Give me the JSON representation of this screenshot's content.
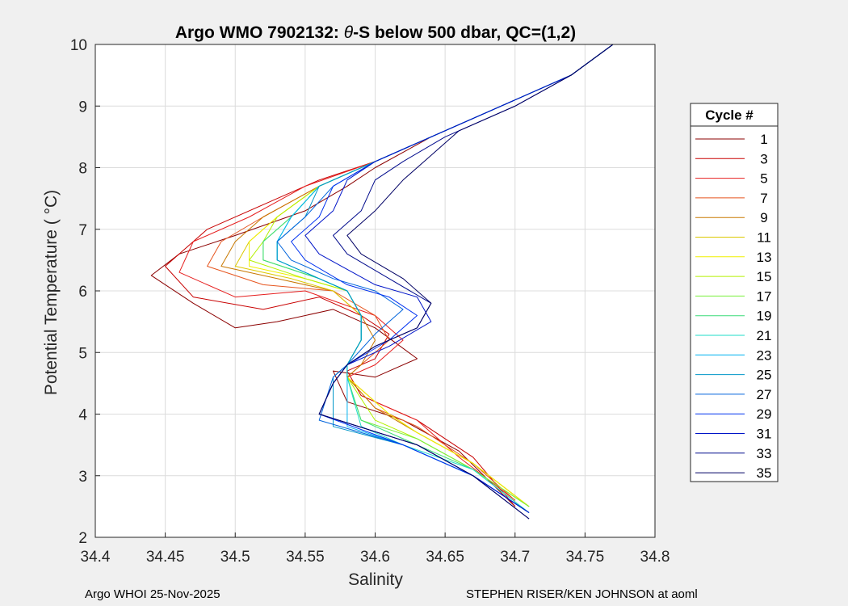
{
  "chart_data": {
    "type": "line",
    "title_prefix": "Argo WMO 7902132: ",
    "title_symbol": "θ",
    "title_suffix": "-S below 500 dbar,  QC=(1,2)",
    "xlabel": "Salinity",
    "ylabel": "Potential Temperature ( °C)",
    "xlim": [
      34.4,
      34.8
    ],
    "ylim": [
      2,
      10
    ],
    "xticks": [
      "34.4",
      "34.45",
      "34.5",
      "34.55",
      "34.6",
      "34.65",
      "34.7",
      "34.75",
      "34.8"
    ],
    "yticks": [
      "2",
      "3",
      "4",
      "5",
      "6",
      "7",
      "8",
      "9",
      "10"
    ],
    "grid": true,
    "legend": {
      "title": "Cycle #",
      "position": "right-outside",
      "entries": [
        {
          "label": "1",
          "color": "#8b0000"
        },
        {
          "label": "3",
          "color": "#c80000"
        },
        {
          "label": "5",
          "color": "#e61e1e"
        },
        {
          "label": "7",
          "color": "#e6551e"
        },
        {
          "label": "9",
          "color": "#c87800"
        },
        {
          "label": "11",
          "color": "#dcc800"
        },
        {
          "label": "13",
          "color": "#f0f000"
        },
        {
          "label": "15",
          "color": "#b4f000"
        },
        {
          "label": "17",
          "color": "#78f03c"
        },
        {
          "label": "19",
          "color": "#3cdc78"
        },
        {
          "label": "21",
          "color": "#1edcc8"
        },
        {
          "label": "23",
          "color": "#00b4f0"
        },
        {
          "label": "25",
          "color": "#0096c8"
        },
        {
          "label": "27",
          "color": "#0064dc"
        },
        {
          "label": "29",
          "color": "#0032f0"
        },
        {
          "label": "31",
          "color": "#0014c8"
        },
        {
          "label": "33",
          "color": "#000a8c"
        },
        {
          "label": "35",
          "color": "#000064"
        }
      ]
    },
    "series": [
      {
        "name": "1",
        "salinity": [
          34.77,
          34.74,
          34.69,
          34.64,
          34.6,
          34.58,
          34.55,
          34.5,
          34.46,
          34.44,
          34.47,
          34.5,
          34.53,
          34.57,
          34.6,
          34.63,
          34.6,
          34.57,
          34.58,
          34.62,
          34.66,
          34.7
        ],
        "theta": [
          10.0,
          9.5,
          9.0,
          8.5,
          8.0,
          7.7,
          7.3,
          6.9,
          6.6,
          6.25,
          5.8,
          5.4,
          5.5,
          5.7,
          5.4,
          4.9,
          4.6,
          4.7,
          4.2,
          3.9,
          3.4,
          2.5
        ]
      },
      {
        "name": "3",
        "salinity": [
          34.77,
          34.74,
          34.69,
          34.64,
          34.6,
          34.56,
          34.52,
          34.48,
          34.45,
          34.47,
          34.52,
          34.56,
          34.59,
          34.61,
          34.6,
          34.58,
          34.59,
          34.63,
          34.67,
          34.7
        ],
        "theta": [
          10.0,
          9.5,
          9.0,
          8.5,
          8.1,
          7.8,
          7.4,
          7.0,
          6.4,
          5.9,
          5.7,
          5.9,
          5.6,
          5.3,
          4.9,
          4.7,
          4.3,
          3.9,
          3.3,
          2.5
        ]
      },
      {
        "name": "5",
        "salinity": [
          34.77,
          34.74,
          34.69,
          34.64,
          34.6,
          34.55,
          34.51,
          34.47,
          34.46,
          34.5,
          34.55,
          34.6,
          34.62,
          34.6,
          34.58,
          34.6,
          34.63,
          34.66,
          34.7
        ],
        "theta": [
          10.0,
          9.5,
          9.0,
          8.5,
          8.1,
          7.7,
          7.2,
          6.8,
          6.3,
          5.9,
          6.0,
          5.6,
          5.2,
          4.8,
          4.6,
          4.2,
          3.9,
          3.3,
          2.6
        ]
      },
      {
        "name": "7",
        "salinity": [
          34.77,
          34.74,
          34.69,
          34.64,
          34.6,
          34.56,
          34.52,
          34.49,
          34.48,
          34.52,
          34.57,
          34.6,
          34.61,
          34.59,
          34.58,
          34.6,
          34.63,
          34.67,
          34.7
        ],
        "theta": [
          10.0,
          9.5,
          9.0,
          8.5,
          8.1,
          7.7,
          7.2,
          6.8,
          6.4,
          6.1,
          6.0,
          5.6,
          5.2,
          4.8,
          4.6,
          4.1,
          3.8,
          3.2,
          2.6
        ]
      },
      {
        "name": "9",
        "salinity": [
          34.77,
          34.74,
          34.69,
          34.64,
          34.6,
          34.56,
          34.52,
          34.5,
          34.49,
          34.53,
          34.57,
          34.59,
          34.6,
          34.59,
          34.58,
          34.6,
          34.63,
          34.67,
          34.71
        ],
        "theta": [
          10.0,
          9.5,
          9.0,
          8.5,
          8.1,
          7.7,
          7.2,
          6.8,
          6.4,
          6.2,
          6.0,
          5.6,
          5.2,
          4.8,
          4.6,
          4.1,
          3.7,
          3.2,
          2.5
        ]
      },
      {
        "name": "11",
        "salinity": [
          34.77,
          34.74,
          34.69,
          34.64,
          34.6,
          34.56,
          34.53,
          34.51,
          34.5,
          34.54,
          34.57,
          34.59,
          34.59,
          34.58,
          34.58,
          34.61,
          34.63,
          34.67,
          34.71
        ],
        "theta": [
          10.0,
          9.5,
          9.0,
          8.5,
          8.1,
          7.7,
          7.2,
          6.8,
          6.4,
          6.2,
          6.0,
          5.6,
          5.2,
          4.8,
          4.6,
          4.0,
          3.7,
          3.2,
          2.5
        ]
      },
      {
        "name": "13",
        "salinity": [
          34.77,
          34.74,
          34.69,
          34.64,
          34.6,
          34.56,
          34.53,
          34.51,
          34.51,
          34.55,
          34.58,
          34.59,
          34.59,
          34.58,
          34.58,
          34.61,
          34.63,
          34.67,
          34.71
        ],
        "theta": [
          10.0,
          9.5,
          9.0,
          8.5,
          8.1,
          7.7,
          7.2,
          6.8,
          6.4,
          6.2,
          6.0,
          5.6,
          5.2,
          4.8,
          4.6,
          4.0,
          3.7,
          3.2,
          2.5
        ]
      },
      {
        "name": "15",
        "salinity": [
          34.77,
          34.74,
          34.69,
          34.64,
          34.6,
          34.56,
          34.53,
          34.52,
          34.51,
          34.55,
          34.58,
          34.59,
          34.59,
          34.58,
          34.58,
          34.6,
          34.63,
          34.67,
          34.71
        ],
        "theta": [
          10.0,
          9.5,
          9.0,
          8.5,
          8.1,
          7.7,
          7.2,
          6.8,
          6.5,
          6.2,
          6.0,
          5.6,
          5.2,
          4.8,
          4.6,
          3.9,
          3.6,
          3.1,
          2.5
        ]
      },
      {
        "name": "17",
        "salinity": [
          34.77,
          34.74,
          34.69,
          34.64,
          34.6,
          34.56,
          34.54,
          34.52,
          34.52,
          34.56,
          34.58,
          34.59,
          34.59,
          34.58,
          34.58,
          34.59,
          34.63,
          34.67,
          34.71
        ],
        "theta": [
          10.0,
          9.5,
          9.0,
          8.5,
          8.1,
          7.7,
          7.2,
          6.8,
          6.5,
          6.2,
          6.0,
          5.6,
          5.2,
          4.8,
          4.6,
          3.9,
          3.6,
          3.1,
          2.5
        ]
      },
      {
        "name": "19",
        "salinity": [
          34.77,
          34.74,
          34.69,
          34.64,
          34.6,
          34.56,
          34.54,
          34.52,
          34.52,
          34.56,
          34.58,
          34.59,
          34.59,
          34.58,
          34.58,
          34.59,
          34.62,
          34.67,
          34.71
        ],
        "theta": [
          10.0,
          9.5,
          9.0,
          8.5,
          8.1,
          7.7,
          7.2,
          6.8,
          6.5,
          6.2,
          6.0,
          5.6,
          5.2,
          4.8,
          4.6,
          3.9,
          3.6,
          3.1,
          2.4
        ]
      },
      {
        "name": "21",
        "salinity": [
          34.77,
          34.74,
          34.69,
          34.64,
          34.6,
          34.56,
          34.54,
          34.53,
          34.53,
          34.56,
          34.58,
          34.59,
          34.59,
          34.58,
          34.58,
          34.59,
          34.62,
          34.67,
          34.71
        ],
        "theta": [
          10.0,
          9.5,
          9.0,
          8.5,
          8.1,
          7.7,
          7.2,
          6.8,
          6.5,
          6.2,
          6.0,
          5.6,
          5.2,
          4.8,
          4.6,
          3.8,
          3.5,
          3.1,
          2.4
        ]
      },
      {
        "name": "23",
        "salinity": [
          34.77,
          34.74,
          34.69,
          34.64,
          34.6,
          34.56,
          34.54,
          34.53,
          34.53,
          34.56,
          34.58,
          34.59,
          34.59,
          34.58,
          34.58,
          34.58,
          34.62,
          34.67,
          34.71
        ],
        "theta": [
          10.0,
          9.5,
          9.0,
          8.5,
          8.1,
          7.7,
          7.2,
          6.8,
          6.5,
          6.2,
          6.0,
          5.6,
          5.2,
          4.8,
          4.6,
          3.8,
          3.5,
          3.0,
          2.4
        ]
      },
      {
        "name": "25",
        "salinity": [
          34.77,
          34.74,
          34.69,
          34.64,
          34.6,
          34.56,
          34.55,
          34.53,
          34.53,
          34.56,
          34.58,
          34.59,
          34.59,
          34.58,
          34.57,
          34.57,
          34.62,
          34.67,
          34.71
        ],
        "theta": [
          10.0,
          9.5,
          9.0,
          8.5,
          8.1,
          7.7,
          7.2,
          6.8,
          6.5,
          6.2,
          6.0,
          5.6,
          5.2,
          4.8,
          4.6,
          3.8,
          3.5,
          3.0,
          2.4
        ]
      },
      {
        "name": "27",
        "salinity": [
          34.77,
          34.74,
          34.69,
          34.64,
          34.6,
          34.57,
          34.55,
          34.53,
          34.54,
          34.57,
          34.6,
          34.62,
          34.6,
          34.58,
          34.57,
          34.56,
          34.62,
          34.67,
          34.71
        ],
        "theta": [
          10.0,
          9.5,
          9.0,
          8.5,
          8.1,
          7.7,
          7.2,
          6.8,
          6.5,
          6.2,
          6.0,
          5.7,
          5.3,
          4.8,
          4.6,
          3.9,
          3.5,
          3.0,
          2.4
        ]
      },
      {
        "name": "29",
        "salinity": [
          34.77,
          34.74,
          34.69,
          34.64,
          34.6,
          34.57,
          34.56,
          34.54,
          34.55,
          34.58,
          34.61,
          34.63,
          34.61,
          34.58,
          34.57,
          34.56,
          34.62,
          34.67,
          34.71
        ],
        "theta": [
          10.0,
          9.5,
          9.0,
          8.5,
          8.1,
          7.7,
          7.2,
          6.8,
          6.5,
          6.1,
          5.9,
          5.6,
          5.2,
          4.8,
          4.5,
          4.0,
          3.5,
          3.0,
          2.4
        ]
      },
      {
        "name": "31",
        "salinity": [
          34.77,
          34.74,
          34.69,
          34.64,
          34.6,
          34.58,
          34.57,
          34.55,
          34.56,
          34.6,
          34.63,
          34.64,
          34.61,
          34.58,
          34.57,
          34.56,
          34.63,
          34.67,
          34.71
        ],
        "theta": [
          10.0,
          9.5,
          9.0,
          8.5,
          8.1,
          7.8,
          7.3,
          6.9,
          6.6,
          6.1,
          5.9,
          5.5,
          5.1,
          4.8,
          4.5,
          4.0,
          3.5,
          3.0,
          2.4
        ]
      },
      {
        "name": "33",
        "salinity": [
          34.77,
          34.74,
          34.7,
          34.65,
          34.62,
          34.6,
          34.59,
          34.57,
          34.58,
          34.61,
          34.64,
          34.63,
          34.6,
          34.58,
          34.57,
          34.56,
          34.63,
          34.67,
          34.71
        ],
        "theta": [
          10.0,
          9.5,
          9.0,
          8.5,
          8.1,
          7.8,
          7.3,
          6.9,
          6.6,
          6.2,
          5.8,
          5.4,
          5.1,
          4.8,
          4.5,
          4.0,
          3.5,
          3.0,
          2.3
        ]
      },
      {
        "name": "35",
        "salinity": [
          34.77,
          34.74,
          34.7,
          34.66,
          34.64,
          34.62,
          34.6,
          34.58,
          34.59,
          34.62,
          34.64,
          34.63,
          34.6,
          34.58,
          34.57,
          34.56,
          34.63,
          34.67,
          34.71
        ],
        "theta": [
          10.0,
          9.5,
          9.0,
          8.6,
          8.2,
          7.8,
          7.3,
          6.9,
          6.6,
          6.2,
          5.8,
          5.4,
          5.1,
          4.8,
          4.5,
          4.0,
          3.5,
          3.0,
          2.3
        ]
      }
    ]
  },
  "footer": {
    "left": "Argo WHOI 25-Nov-2025",
    "right": "STEPHEN RISER/KEN JOHNSON at aoml"
  }
}
